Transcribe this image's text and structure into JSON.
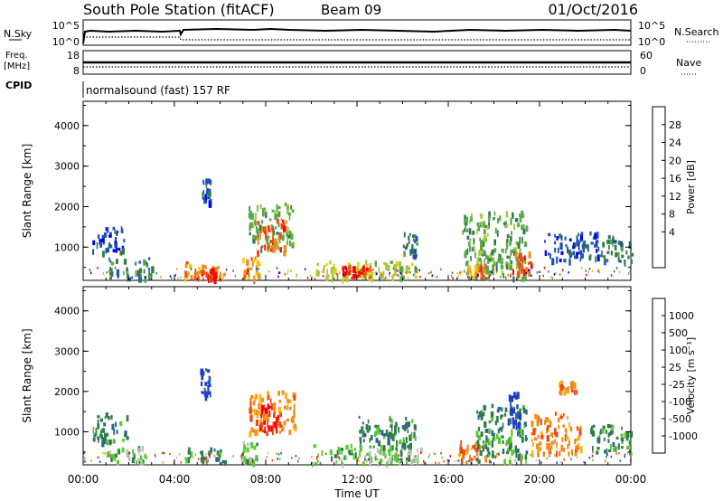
{
  "header": {
    "station": "South Pole Station (fitACF)",
    "beam": "Beam 09",
    "date": "01/Oct/2016"
  },
  "params": {
    "nsky_label": "N.Sky",
    "nsky_ticks": [
      "10^5",
      "10^0"
    ],
    "nsearch_label": "N.Search",
    "nsearch_ticks": [
      "10^5",
      "10^0"
    ],
    "freq_label_1": "Freq.",
    "freq_label_2": "[MHz]",
    "freq_ticks": [
      "18",
      "8"
    ],
    "nave_label": "Nave",
    "nave_ticks": [
      "60",
      "0"
    ],
    "cpid_label": "CPID",
    "cpid_text": "normalsound (fast) 157 RF"
  },
  "chart_data": [
    {
      "type": "heatmap",
      "name": "power-panel",
      "ylabel": "Slant Range [km]",
      "y_ticks": [
        "4000",
        "3000",
        "2000",
        "1000"
      ],
      "ylim": [
        180,
        4600
      ],
      "xlim": [
        "00:00",
        "24:00"
      ],
      "colorbar_label": "Power [dB]",
      "colorbar_ticks": [
        "28",
        "24",
        "20",
        "16",
        "12",
        "8",
        "4"
      ],
      "colorbar_colors": [
        "#0000ff",
        "#1e4fb4",
        "#2f7a4a",
        "#5aa84a",
        "#a8c83c",
        "#f0c800",
        "#f08c1e",
        "#f04614",
        "#ff0000"
      ],
      "regions": [
        {
          "t0": 0.4,
          "t1": 1.8,
          "r0": 900,
          "r1": 1600,
          "level": "#1e4fb4"
        },
        {
          "t0": 1.1,
          "t1": 3.0,
          "r0": 250,
          "r1": 750,
          "level": "#2f7a4a"
        },
        {
          "t0": 4.4,
          "t1": 6.2,
          "r0": 250,
          "r1": 650,
          "level": "#f08c1e"
        },
        {
          "t0": 5.0,
          "t1": 5.8,
          "r0": 250,
          "r1": 500,
          "level": "#ff0000"
        },
        {
          "t0": 5.2,
          "t1": 5.6,
          "r0": 2100,
          "r1": 2700,
          "level": "#1e4fb4"
        },
        {
          "t0": 7.2,
          "t1": 9.2,
          "r0": 1000,
          "r1": 2100,
          "level": "#5aa84a"
        },
        {
          "t0": 7.6,
          "t1": 8.8,
          "r0": 900,
          "r1": 1700,
          "level": "#f04614"
        },
        {
          "t0": 6.9,
          "t1": 7.7,
          "r0": 250,
          "r1": 800,
          "level": "#f08c1e"
        },
        {
          "t0": 10.2,
          "t1": 14.7,
          "r0": 250,
          "r1": 700,
          "level": "#a8c83c"
        },
        {
          "t0": 11.2,
          "t1": 12.6,
          "r0": 300,
          "r1": 550,
          "level": "#ff0000"
        },
        {
          "t0": 14.0,
          "t1": 14.6,
          "r0": 800,
          "r1": 1400,
          "level": "#2f7a4a"
        },
        {
          "t0": 16.6,
          "t1": 19.4,
          "r0": 250,
          "r1": 1900,
          "level": "#5aa84a"
        },
        {
          "t0": 16.8,
          "t1": 17.6,
          "r0": 250,
          "r1": 600,
          "level": "#f08c1e"
        },
        {
          "t0": 18.8,
          "t1": 19.6,
          "r0": 350,
          "r1": 900,
          "level": "#f04614"
        },
        {
          "t0": 20.2,
          "t1": 22.6,
          "r0": 700,
          "r1": 1400,
          "level": "#1e4fb4"
        },
        {
          "t0": 22.6,
          "t1": 24.0,
          "r0": 650,
          "r1": 1300,
          "level": "#2f7a4a"
        }
      ]
    },
    {
      "type": "heatmap",
      "name": "velocity-panel",
      "ylabel": "Slant Range [km]",
      "y_ticks": [
        "4000",
        "3000",
        "2000",
        "1000"
      ],
      "ylim": [
        180,
        4600
      ],
      "xlim": [
        "00:00",
        "24:00"
      ],
      "xlabel": "Time UT",
      "x_ticks": [
        "00:00",
        "04:00",
        "08:00",
        "12:00",
        "16:00",
        "20:00",
        "00:00"
      ],
      "colorbar_label": "Velocity [m s⁻¹]",
      "colorbar_ticks": [
        "1000",
        "500",
        "100",
        "25",
        "-25",
        "-100",
        "-500",
        "-1000"
      ],
      "colorbar_colors": [
        "#ff0000",
        "#f04614",
        "#f08c1e",
        "#ffb400",
        "#bebebe",
        "#5ac832",
        "#2f7a4a",
        "#2a6496",
        "#1e3cc8"
      ],
      "regions": [
        {
          "t0": 0.4,
          "t1": 1.9,
          "r0": 800,
          "r1": 1500,
          "level": "#2f7a4a"
        },
        {
          "t0": 1.0,
          "t1": 3.0,
          "r0": 250,
          "r1": 650,
          "level": "#5ac832"
        },
        {
          "t0": 4.4,
          "t1": 6.2,
          "r0": 250,
          "r1": 650,
          "level": "#2f7a4a"
        },
        {
          "t0": 5.1,
          "t1": 5.6,
          "r0": 1900,
          "r1": 2600,
          "level": "#1e3cc8"
        },
        {
          "t0": 7.2,
          "t1": 9.3,
          "r0": 1000,
          "r1": 2100,
          "level": "#f08c1e"
        },
        {
          "t0": 7.7,
          "t1": 8.6,
          "r0": 1100,
          "r1": 1700,
          "level": "#ff0000"
        },
        {
          "t0": 6.9,
          "t1": 7.6,
          "r0": 250,
          "r1": 800,
          "level": "#5ac832"
        },
        {
          "t0": 10.0,
          "t1": 14.8,
          "r0": 250,
          "r1": 700,
          "level": "#5ac832"
        },
        {
          "t0": 12.0,
          "t1": 14.6,
          "r0": 600,
          "r1": 1400,
          "level": "#2f7a4a"
        },
        {
          "t0": 16.4,
          "t1": 17.6,
          "r0": 250,
          "r1": 800,
          "level": "#f08c1e"
        },
        {
          "t0": 17.2,
          "t1": 19.4,
          "r0": 300,
          "r1": 1700,
          "level": "#2f7a4a"
        },
        {
          "t0": 18.6,
          "t1": 19.2,
          "r0": 1200,
          "r1": 2000,
          "level": "#1e3cc8"
        },
        {
          "t0": 19.6,
          "t1": 21.8,
          "r0": 500,
          "r1": 1500,
          "level": "#f08c1e"
        },
        {
          "t0": 20.8,
          "t1": 21.6,
          "r0": 2000,
          "r1": 2300,
          "level": "#f08c1e"
        },
        {
          "t0": 22.2,
          "t1": 24.0,
          "r0": 500,
          "r1": 1200,
          "level": "#2f7a4a"
        }
      ]
    }
  ]
}
